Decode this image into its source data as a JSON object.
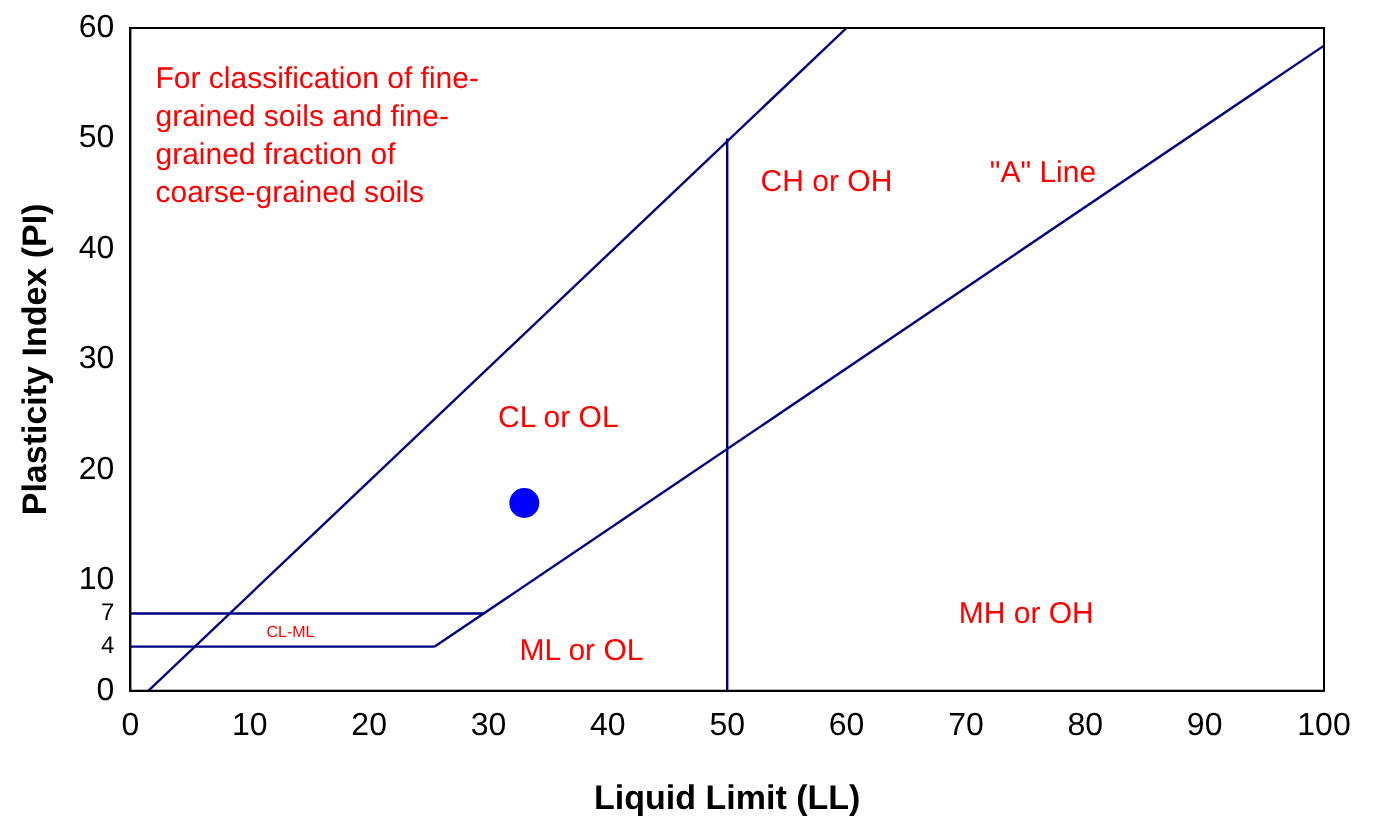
{
  "chart_data": {
    "type": "line",
    "xlabel": "Liquid Limit (LL)",
    "ylabel": "Plasticity Index (PI)",
    "xlim": [
      0,
      100
    ],
    "xticks": [
      0,
      10,
      20,
      30,
      40,
      50,
      60,
      70,
      80,
      90,
      100
    ],
    "ylim": [
      0,
      60
    ],
    "yticks": [
      0,
      4,
      7,
      10,
      20,
      30,
      40,
      50,
      60
    ],
    "grid": false,
    "legend": false,
    "series": [
      {
        "type": "line",
        "color": "#000080",
        "x": [
          1.5,
          60
        ],
        "values": [
          0,
          60
        ],
        "marker": "none"
      },
      {
        "type": "line",
        "color": "#000080",
        "x": [
          25.5,
          100
        ],
        "values": [
          4,
          58.4
        ],
        "marker": "none"
      },
      {
        "type": "line",
        "color": "#000080",
        "x": [
          0,
          25.5
        ],
        "values": [
          4,
          4
        ],
        "marker": "none"
      },
      {
        "type": "line",
        "color": "#000080",
        "x": [
          0,
          29.6
        ],
        "values": [
          7,
          7
        ],
        "marker": "none"
      },
      {
        "type": "line",
        "color": "#000080",
        "x": [
          50,
          50
        ],
        "values": [
          0,
          50
        ],
        "marker": "none"
      },
      {
        "type": "scatter",
        "color": "#0000ff",
        "x": [
          33
        ],
        "values": [
          17
        ],
        "marker": "circle"
      }
    ],
    "annotations": [
      "For classification of fine-\ngrained soils and fine-\ngrained fraction of\ncoarse-grained soils",
      "CH or OH",
      "\"A\" Line",
      "CL or OL",
      "CL-ML",
      "ML or OL",
      "MH or OH"
    ]
  }
}
